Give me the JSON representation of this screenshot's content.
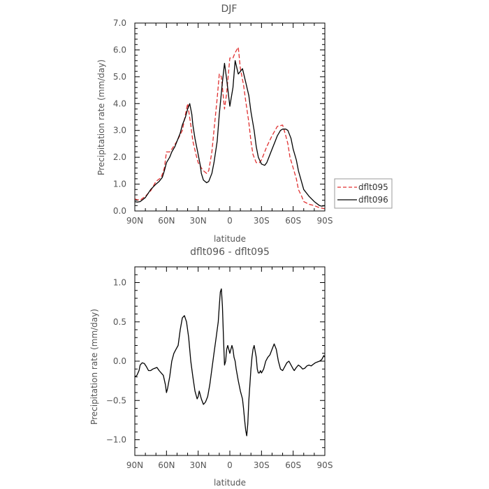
{
  "chart_data": [
    {
      "type": "line",
      "title": "DJF",
      "xlabel": "latitude",
      "ylabel": "Precipitation rate (mm/day)",
      "xlim": [
        90,
        -90
      ],
      "ylim": [
        0,
        7
      ],
      "xticks": [
        90,
        60,
        30,
        0,
        -30,
        -60,
        -90
      ],
      "xtick_labels": [
        "90N",
        "60N",
        "30N",
        "0",
        "30S",
        "60S",
        "90S"
      ],
      "yticks": [
        0,
        1,
        2,
        3,
        4,
        5,
        6,
        7
      ],
      "ytick_labels": [
        "0.0",
        "1.0",
        "2.0",
        "3.0",
        "4.0",
        "5.0",
        "6.0",
        "7.0"
      ],
      "legend": {
        "placement": "right-outside",
        "entries": [
          "dflt095",
          "dflt096"
        ]
      },
      "series": [
        {
          "name": "dflt095",
          "color": "#e03030",
          "dash": "dashed",
          "x": [
            90,
            88,
            85,
            80,
            75,
            70,
            65,
            62,
            60,
            57,
            55,
            50,
            45,
            42,
            40,
            37,
            35,
            32,
            30,
            27,
            25,
            22,
            20,
            17,
            15,
            12,
            10,
            8,
            5,
            3,
            0,
            -3,
            -5,
            -8,
            -10,
            -13,
            -15,
            -18,
            -20,
            -22,
            -25,
            -28,
            -30,
            -32,
            -35,
            -40,
            -45,
            -50,
            -53,
            -55,
            -57,
            -60,
            -63,
            -65,
            -68,
            -70,
            -75,
            -80,
            -85,
            -88,
            -90
          ],
          "y": [
            0.45,
            0.42,
            0.4,
            0.55,
            0.75,
            1.1,
            1.25,
            1.6,
            2.2,
            2.2,
            2.3,
            2.6,
            3.0,
            3.6,
            4.0,
            3.2,
            2.6,
            2.1,
            1.8,
            1.6,
            1.5,
            1.4,
            1.5,
            2.2,
            3.0,
            4.2,
            5.1,
            5.0,
            3.8,
            4.4,
            5.7,
            5.7,
            5.9,
            6.1,
            5.3,
            4.7,
            4.1,
            3.3,
            2.6,
            2.1,
            1.8,
            1.8,
            1.9,
            2.1,
            2.4,
            2.8,
            3.15,
            3.2,
            2.8,
            2.5,
            2.0,
            1.6,
            1.2,
            0.8,
            0.55,
            0.35,
            0.25,
            0.2,
            0.12,
            0.1,
            0.08
          ]
        },
        {
          "name": "dflt096",
          "color": "#000000",
          "dash": "solid",
          "x": [
            90,
            88,
            85,
            80,
            75,
            70,
            67,
            64,
            62,
            60,
            57,
            55,
            52,
            50,
            47,
            45,
            42,
            40,
            38,
            36,
            35,
            33,
            30,
            28,
            27,
            25,
            22,
            20,
            17,
            15,
            12,
            10,
            7,
            5,
            3,
            0,
            -3,
            -5,
            -8,
            -10,
            -12,
            -15,
            -18,
            -20,
            -23,
            -25,
            -27,
            -30,
            -33,
            -35,
            -37,
            -40,
            -43,
            -45,
            -48,
            -50,
            -53,
            -55,
            -58,
            -60,
            -63,
            -65,
            -70,
            -75,
            -80,
            -85,
            -87,
            -90
          ],
          "y": [
            0.35,
            0.33,
            0.35,
            0.5,
            0.8,
            1.0,
            1.1,
            1.25,
            1.5,
            1.8,
            2.0,
            2.2,
            2.4,
            2.6,
            2.9,
            3.2,
            3.5,
            3.8,
            4.0,
            3.6,
            3.2,
            2.7,
            2.1,
            1.7,
            1.4,
            1.15,
            1.05,
            1.1,
            1.4,
            1.8,
            2.6,
            3.6,
            4.8,
            5.5,
            4.9,
            3.9,
            4.6,
            5.6,
            5.1,
            5.2,
            5.3,
            4.8,
            4.3,
            3.7,
            3.0,
            2.4,
            2.0,
            1.75,
            1.7,
            1.8,
            2.0,
            2.3,
            2.6,
            2.8,
            3.0,
            3.05,
            3.05,
            3.0,
            2.7,
            2.3,
            1.9,
            1.5,
            0.8,
            0.55,
            0.35,
            0.2,
            0.18,
            0.2
          ]
        }
      ]
    },
    {
      "type": "line",
      "title": "dflt096 - dflt095",
      "xlabel": "latitude",
      "ylabel": "Precipitation rate (mm/day)",
      "xlim": [
        90,
        -90
      ],
      "ylim": [
        -1.2,
        1.2
      ],
      "xticks": [
        90,
        60,
        30,
        0,
        -30,
        -60,
        -90
      ],
      "xtick_labels": [
        "90N",
        "60N",
        "30N",
        "0",
        "30S",
        "60S",
        "90S"
      ],
      "yticks": [
        -1.0,
        -0.5,
        0.0,
        0.5,
        1.0
      ],
      "ytick_labels": [
        "−1.0",
        "−0.5",
        "0.0",
        "0.5",
        "1.0"
      ],
      "series": [
        {
          "color": "#000000",
          "dash": "solid",
          "x": [
            90,
            88,
            86,
            85,
            83,
            81,
            79,
            77,
            75,
            73,
            71,
            69,
            67,
            65,
            63,
            61,
            60,
            59,
            57,
            55,
            53,
            51,
            49,
            47,
            45,
            43,
            41,
            39,
            37,
            35,
            33,
            31,
            30,
            29,
            27,
            25,
            23,
            21,
            19,
            17,
            15,
            13,
            11,
            10,
            9,
            8,
            7,
            6,
            5,
            4,
            3,
            2,
            1,
            0,
            -1,
            -2,
            -3,
            -4,
            -5,
            -6,
            -8,
            -10,
            -12,
            -13,
            -14,
            -15,
            -16,
            -17,
            -18,
            -19,
            -20,
            -21,
            -22,
            -23,
            -25,
            -26,
            -27,
            -28,
            -29,
            -30,
            -32,
            -34,
            -36,
            -38,
            -40,
            -42,
            -44,
            -46,
            -47,
            -48,
            -50,
            -52,
            -54,
            -56,
            -58,
            -60,
            -61,
            -63,
            -65,
            -67,
            -69,
            -71,
            -73,
            -75,
            -77,
            -79,
            -81,
            -83,
            -85,
            -87,
            -89,
            -90
          ],
          "y": [
            -0.2,
            -0.18,
            -0.12,
            -0.05,
            -0.02,
            -0.03,
            -0.07,
            -0.12,
            -0.12,
            -0.1,
            -0.09,
            -0.08,
            -0.12,
            -0.15,
            -0.18,
            -0.3,
            -0.4,
            -0.35,
            -0.2,
            0.0,
            0.1,
            0.15,
            0.2,
            0.4,
            0.55,
            0.58,
            0.5,
            0.3,
            0.0,
            -0.2,
            -0.38,
            -0.48,
            -0.45,
            -0.38,
            -0.48,
            -0.55,
            -0.52,
            -0.45,
            -0.3,
            -0.1,
            0.1,
            0.3,
            0.5,
            0.7,
            0.88,
            0.92,
            0.7,
            0.3,
            -0.05,
            0.0,
            0.15,
            0.2,
            0.15,
            0.1,
            0.15,
            0.2,
            0.15,
            0.05,
            0.0,
            -0.1,
            -0.25,
            -0.38,
            -0.48,
            -0.6,
            -0.75,
            -0.88,
            -0.95,
            -0.8,
            -0.5,
            -0.3,
            -0.1,
            0.05,
            0.15,
            0.2,
            0.05,
            -0.1,
            -0.15,
            -0.15,
            -0.12,
            -0.15,
            -0.1,
            0.0,
            0.05,
            0.08,
            0.15,
            0.22,
            0.15,
            0.0,
            -0.05,
            -0.1,
            -0.12,
            -0.07,
            -0.02,
            0.0,
            -0.05,
            -0.1,
            -0.12,
            -0.08,
            -0.05,
            -0.07,
            -0.1,
            -0.09,
            -0.06,
            -0.05,
            -0.06,
            -0.04,
            -0.02,
            -0.01,
            0.0,
            0.02,
            0.07,
            0.05
          ]
        }
      ]
    }
  ]
}
